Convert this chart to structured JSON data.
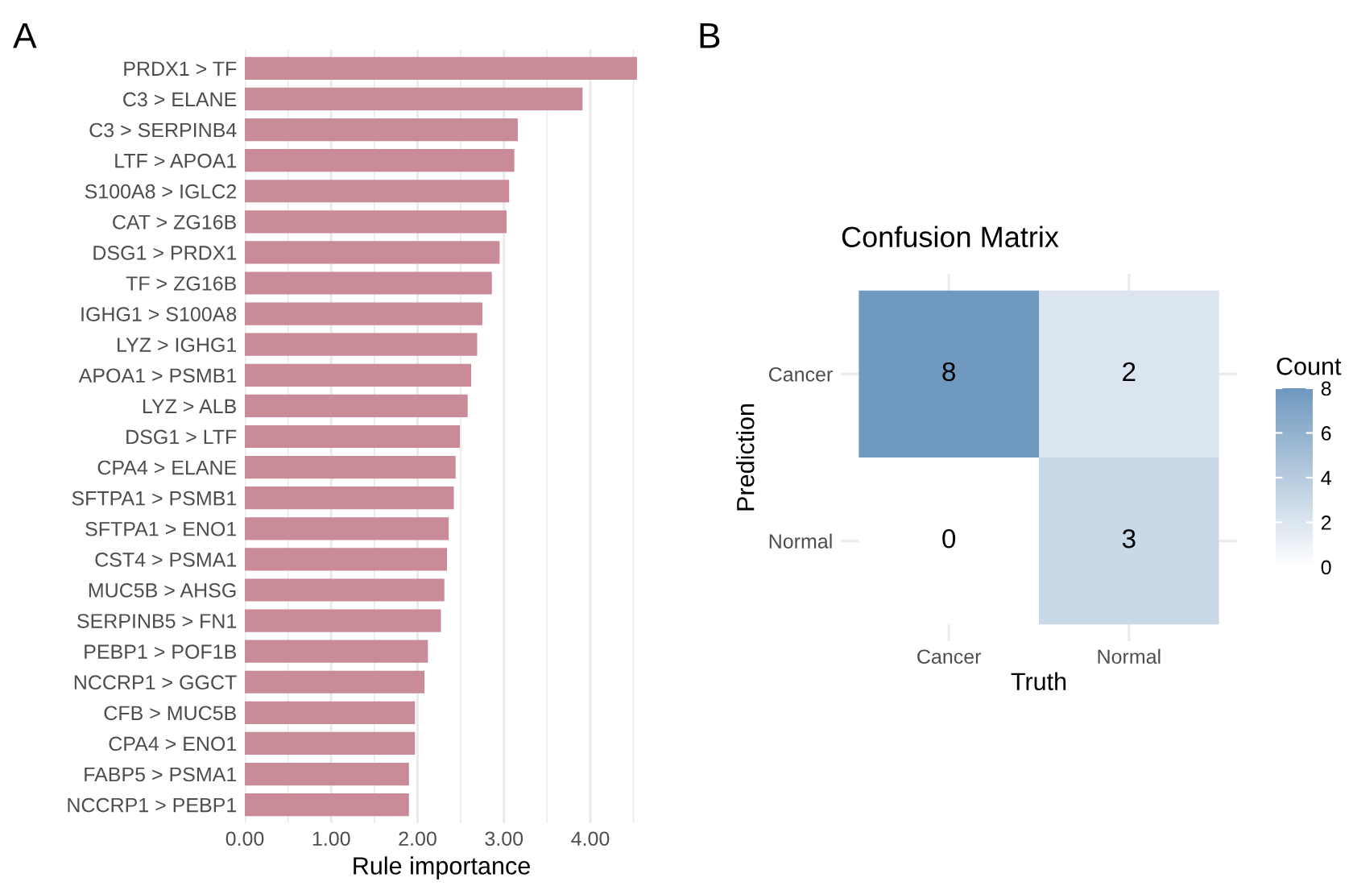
{
  "chart_data": [
    {
      "type": "bar",
      "orientation": "horizontal",
      "annotations": [
        "A"
      ],
      "xlabel": "Rule importance",
      "color": "#c88b97",
      "grid": "x",
      "categories": [
        "PRDX1 > TF",
        "C3 > ELANE",
        "C3 > SERPINB4",
        "LTF > APOA1",
        "S100A8 > IGLC2",
        "CAT > ZG16B",
        "DSG1 > PRDX1",
        "TF > ZG16B",
        "IGHG1 > S100A8",
        "LYZ > IGHG1",
        "APOA1 > PSMB1",
        "LYZ > ALB",
        "DSG1 > LTF",
        "CPA4 > ELANE",
        "SFTPA1 > PSMB1",
        "SFTPA1 > ENO1",
        "CST4 > PSMA1",
        "MUC5B > AHSG",
        "SERPINB5 > FN1",
        "PEBP1 > POF1B",
        "NCCRP1 > GGCT",
        "CFB > MUC5B",
        "CPA4 > ENO1",
        "FABP5 > PSMA1",
        "NCCRP1 > PEBP1"
      ],
      "values": [
        4.54,
        3.91,
        3.16,
        3.12,
        3.06,
        3.03,
        2.95,
        2.86,
        2.75,
        2.69,
        2.62,
        2.58,
        2.49,
        2.44,
        2.42,
        2.36,
        2.34,
        2.31,
        2.27,
        2.12,
        2.08,
        1.97,
        1.97,
        1.9,
        1.9
      ],
      "xlim": [
        0,
        4.55
      ],
      "xticks": [
        {
          "value": 0,
          "label": "0.00"
        },
        {
          "value": 0.5,
          "label": null
        },
        {
          "value": 1,
          "label": "1.00"
        },
        {
          "value": 1.5,
          "label": null
        },
        {
          "value": 2,
          "label": "2.00"
        },
        {
          "value": 2.5,
          "label": null
        },
        {
          "value": 3,
          "label": "3.00"
        },
        {
          "value": 3.5,
          "label": null
        },
        {
          "value": 4,
          "label": "4.00"
        },
        {
          "value": 4.5,
          "label": null
        }
      ]
    },
    {
      "type": "heatmap",
      "annotations": [
        "B"
      ],
      "title": "Confusion Matrix",
      "xlabel": "Truth",
      "ylabel": "Prediction",
      "clabel": "Count",
      "categories": [
        "Cancer",
        "Normal"
      ],
      "y_categories": [
        "Cancer",
        "Normal"
      ],
      "cells": [
        [
          8,
          2
        ],
        [
          0,
          3
        ]
      ],
      "data_labels": true,
      "clim": [
        0,
        8
      ],
      "cticks": [
        0,
        2,
        4,
        6,
        8
      ],
      "grid": true
    }
  ]
}
